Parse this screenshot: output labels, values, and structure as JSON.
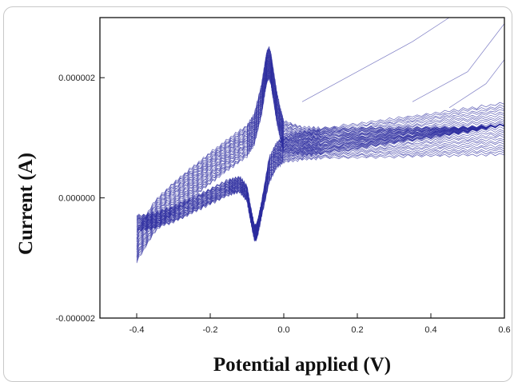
{
  "chart_data": {
    "type": "line",
    "title": "",
    "xlabel": "Potential applied (V)",
    "ylabel": "Current (A)",
    "xlim": [
      -0.5,
      0.6
    ],
    "ylim": [
      -2e-06,
      3e-06
    ],
    "x_ticks": [
      {
        "value": -0.4,
        "label": "-0.4"
      },
      {
        "value": -0.2,
        "label": "-0.2"
      },
      {
        "value": 0.0,
        "label": "0.0"
      },
      {
        "value": 0.2,
        "label": "0.2"
      },
      {
        "value": 0.4,
        "label": "0.4"
      },
      {
        "value": 0.6,
        "label": "0.6"
      }
    ],
    "y_ticks": [
      {
        "value": 2e-06,
        "label": "0.000002"
      },
      {
        "value": 0.0,
        "label": "0.000000"
      },
      {
        "value": -2e-06,
        "label": "-0.000002"
      }
    ],
    "grid": false,
    "legend": "none",
    "series_color": "#2a2a9e",
    "cycles": 24,
    "base_cycle": {
      "forward": {
        "x": [
          -0.4,
          -0.35,
          -0.3,
          -0.25,
          -0.2,
          -0.15,
          -0.1,
          -0.08,
          -0.06,
          -0.05,
          -0.045,
          -0.04,
          -0.035,
          -0.03,
          -0.02,
          -0.01,
          0.0,
          0.05,
          0.1,
          0.2,
          0.3,
          0.4,
          0.5,
          0.6
        ],
        "y": [
          -5.5e-07,
          -5e-08,
          2.5e-07,
          5e-07,
          7.5e-07,
          9.8e-07,
          1.2e-06,
          1.4e-06,
          1.9e-06,
          2.3e-06,
          2.45e-06,
          2.5e-06,
          2.4e-06,
          2.2e-06,
          1.8e-06,
          1.5e-06,
          1.28e-06,
          1.2e-06,
          1.2e-06,
          1.25e-06,
          1.3e-06,
          1.35e-06,
          1.4e-06,
          1.48e-06
        ]
      },
      "reverse": {
        "x": [
          0.6,
          0.5,
          0.4,
          0.3,
          0.2,
          0.1,
          0.05,
          0.0,
          -0.02,
          -0.04,
          -0.06,
          -0.07,
          -0.075,
          -0.08,
          -0.09,
          -0.1,
          -0.12,
          -0.15,
          -0.2,
          -0.25,
          -0.3,
          -0.35,
          -0.4
        ],
        "y": [
          9.5e-07,
          9e-07,
          8.5e-07,
          8e-07,
          7.5e-07,
          7e-07,
          6.6e-07,
          6e-07,
          5e-07,
          2.5e-07,
          -3e-07,
          -6e-07,
          -7e-07,
          -7e-07,
          -4e-07,
          -5e-08,
          1e-07,
          5e-08,
          -1e-07,
          -2.5e-07,
          -4e-07,
          -5e-07,
          -5.5e-07
        ]
      }
    },
    "cycle_shift": {
      "forward": 2.2e-08,
      "reverse": 1.8e-08
    },
    "tail_spread_right": 9e-07
  }
}
